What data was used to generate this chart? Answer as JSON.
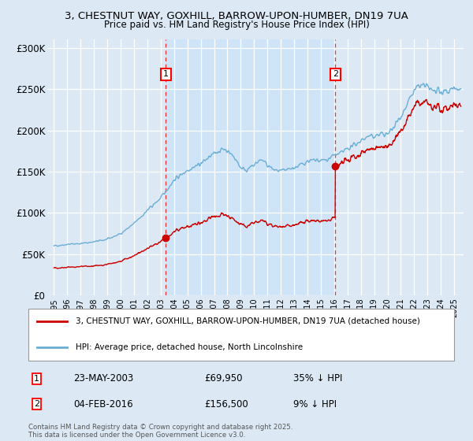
{
  "title": "3, CHESTNUT WAY, GOXHILL, BARROW-UPON-HUMBER, DN19 7UA",
  "subtitle": "Price paid vs. HM Land Registry's House Price Index (HPI)",
  "legend_property": "3, CHESTNUT WAY, GOXHILL, BARROW-UPON-HUMBER, DN19 7UA (detached house)",
  "legend_hpi": "HPI: Average price, detached house, North Lincolnshire",
  "sale1_date": "23-MAY-2003",
  "sale1_price_str": "£69,950",
  "sale1_note": "35% ↓ HPI",
  "sale2_date": "04-FEB-2016",
  "sale2_price_str": "£156,500",
  "sale2_note": "9% ↓ HPI",
  "footer": "Contains HM Land Registry data © Crown copyright and database right 2025.\nThis data is licensed under the Open Government Licence v3.0.",
  "sale1_year": 2003.38,
  "sale1_value": 69950,
  "sale2_year": 2016.09,
  "sale2_value": 156500,
  "hpi_color": "#6aaed6",
  "property_color": "#cc0000",
  "shade_color": "#d0e4f7",
  "background_color": "#dce9f5",
  "y_ticks": [
    0,
    50000,
    100000,
    150000,
    200000,
    250000,
    300000
  ],
  "y_tick_labels": [
    "£0",
    "£50K",
    "£100K",
    "£150K",
    "£200K",
    "£250K",
    "£300K"
  ],
  "ylim": [
    0,
    310000
  ],
  "xlim_start": 1994.5,
  "xlim_end": 2025.7
}
